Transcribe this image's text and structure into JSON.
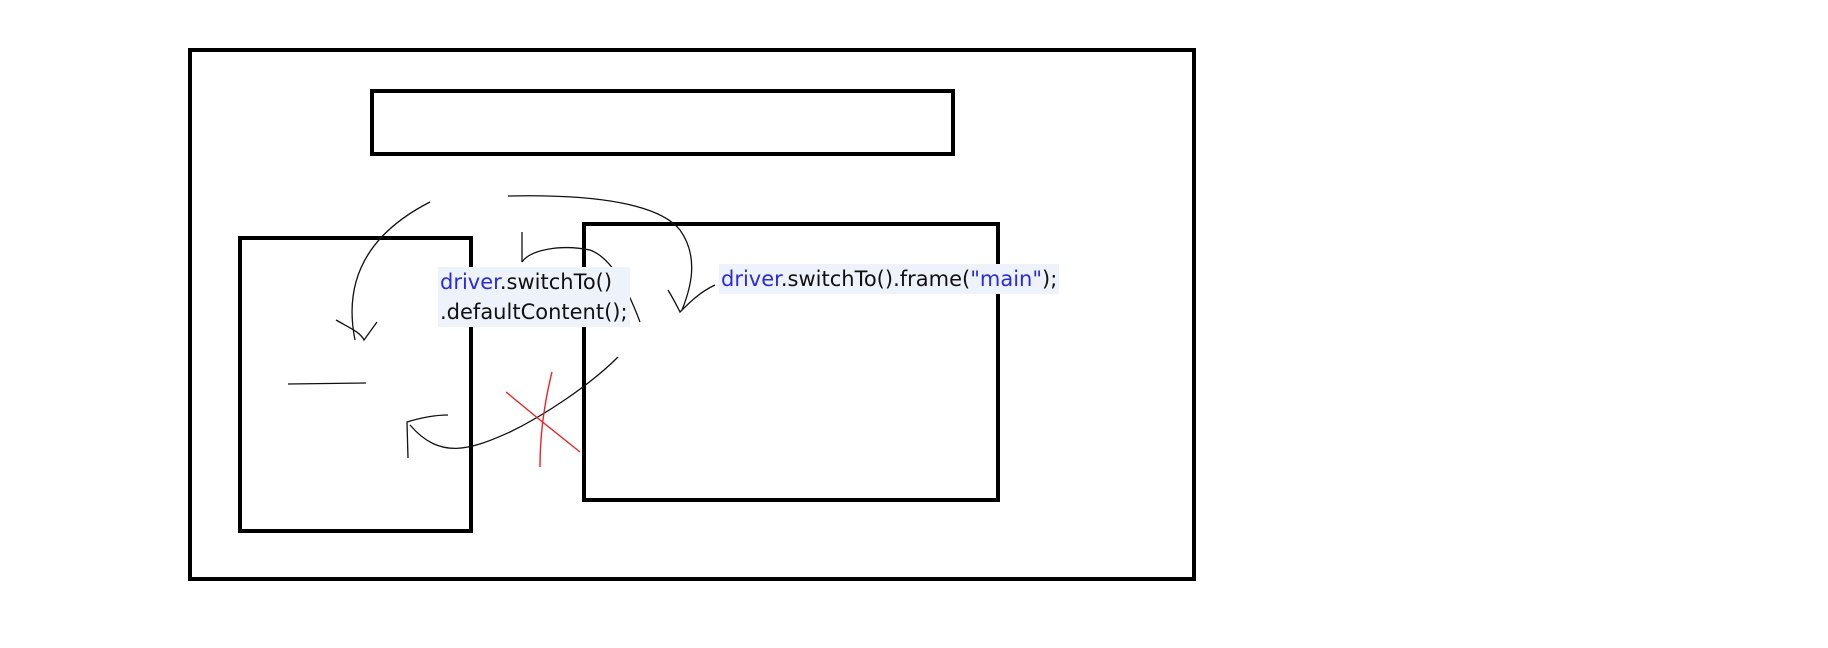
{
  "diagram": {
    "left_label": {
      "object": "driver",
      "line1_rest": ".switchTo()",
      "line2": ".defaultContent();"
    },
    "right_label": {
      "object": "driver",
      "method": ".switchTo().frame(",
      "argument": "\"main\"",
      "suffix": ");"
    }
  },
  "colors": {
    "frame_border": "#000000",
    "arrow": "#111111",
    "cross": "#ee2222",
    "code_keyword": "#2a2ae0",
    "code_highlight": "#eef3fb"
  }
}
